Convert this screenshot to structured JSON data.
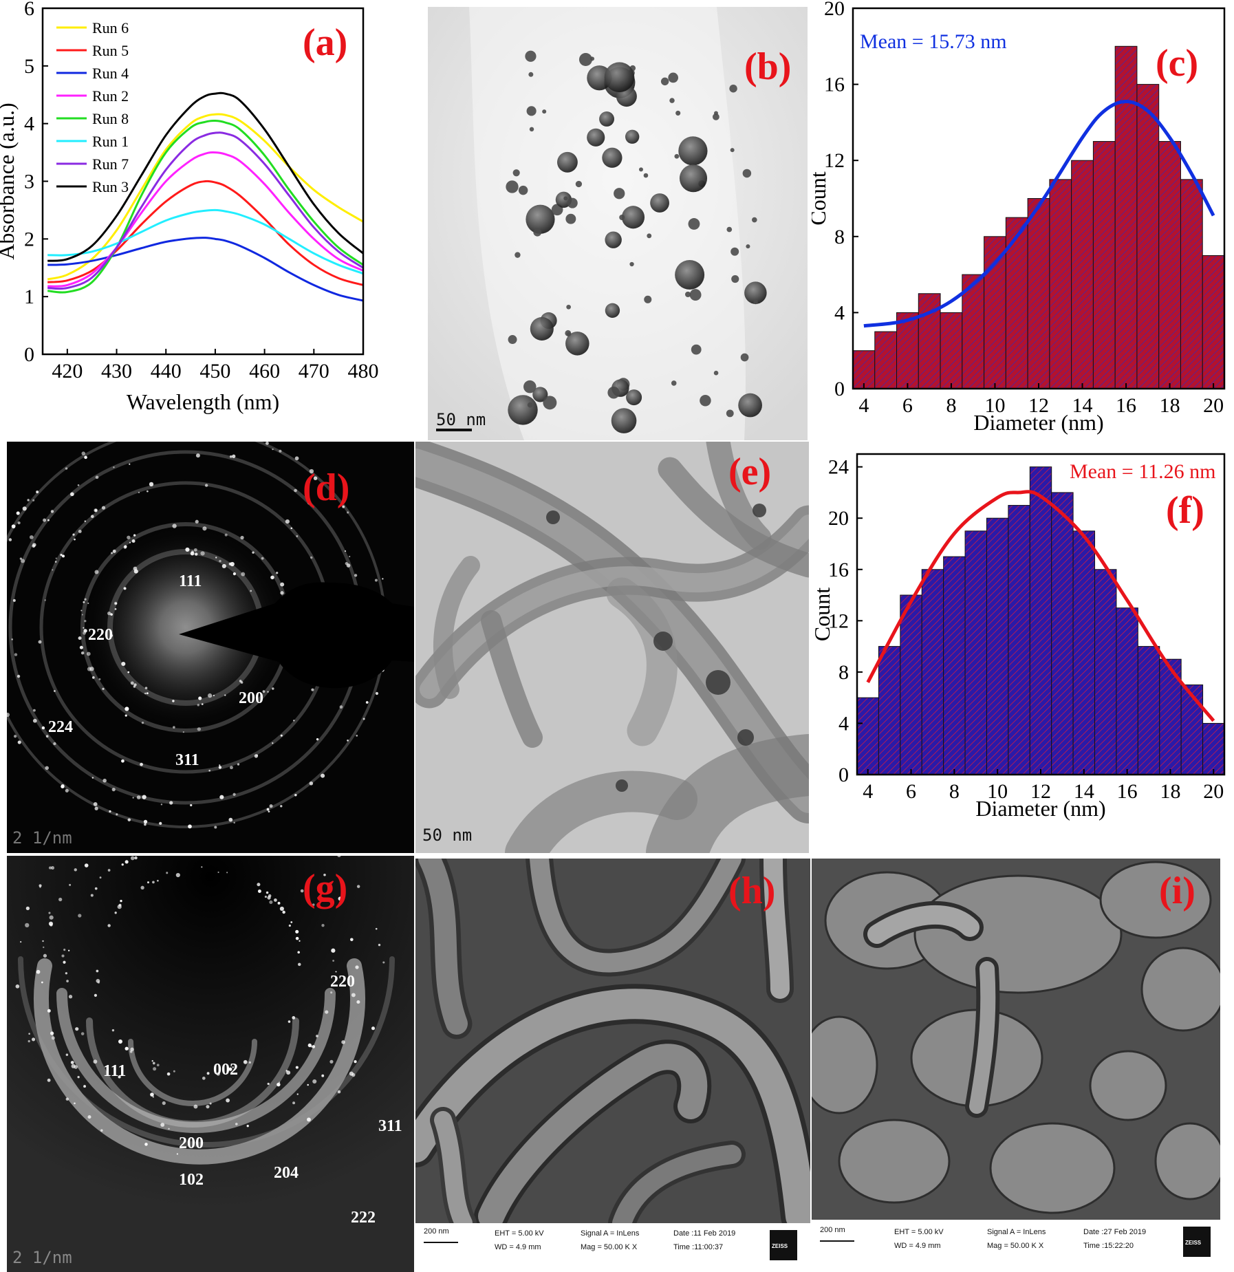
{
  "panels": {
    "a": {
      "letter": "(a)"
    },
    "b": {
      "letter": "(b)",
      "scalebar": "50 nm"
    },
    "c": {
      "letter": "(c)",
      "mean_label": "Mean = 15.73 nm"
    },
    "d": {
      "letter": "(d)",
      "hkl": [
        "111",
        "220",
        "200",
        "224",
        "311"
      ],
      "scalebar": "2 1/nm"
    },
    "e": {
      "letter": "(e)",
      "scalebar": "50 nm"
    },
    "f": {
      "letter": "(f)",
      "mean_label": "Mean = 11.26 nm"
    },
    "g": {
      "letter": "(g)",
      "hkl": [
        "220",
        "111",
        "002",
        "311",
        "200",
        "204",
        "102",
        "222"
      ],
      "scalebar": "2 1/nm"
    },
    "h": {
      "letter": "(h)",
      "info": {
        "scale": "200 nm",
        "eht": "EHT = 5.00 kV",
        "wd": "WD = 4.9 mm",
        "signal": "Signal A = InLens",
        "mag": "Mag = 50.00 K X",
        "date": "Date :11 Feb 2019",
        "time": "Time :11:00:37",
        "brand": "ZEISS"
      }
    },
    "i": {
      "letter": "(i)",
      "info": {
        "scale": "200 nm",
        "eht": "EHT = 5.00 kV",
        "wd": "WD = 4.9 mm",
        "signal": "Signal A = InLens",
        "mag": "Mag = 50.00 K X",
        "date": "Date :27 Feb 2019",
        "time": "Time :15:22:20",
        "brand": "ZEISS"
      }
    }
  },
  "colors": {
    "letter": "#e8141b",
    "hist_c_fill": "#b3122f",
    "hist_c_curve": "#1030e0",
    "hist_f_fill": "#2a1aa8",
    "hist_f_curve": "#e8141b"
  },
  "chart_data": [
    {
      "panel": "a",
      "type": "line",
      "xlabel": "Wavelength (nm)",
      "ylabel": "Absorbance (a.u.)",
      "xlim": [
        415,
        480
      ],
      "ylim": [
        0,
        6
      ],
      "xticks": [
        420,
        430,
        440,
        450,
        460,
        470,
        480
      ],
      "yticks": [
        0,
        1,
        2,
        3,
        4,
        5,
        6
      ],
      "legend": "top-left",
      "x": [
        416,
        420,
        425,
        430,
        435,
        440,
        445,
        448,
        450,
        452,
        455,
        460,
        465,
        470,
        475,
        480
      ],
      "series": [
        {
          "name": "Run 6",
          "color": "#ffee00",
          "values": [
            1.3,
            1.38,
            1.65,
            2.15,
            2.85,
            3.55,
            4.0,
            4.13,
            4.16,
            4.15,
            4.05,
            3.7,
            3.25,
            2.85,
            2.55,
            2.3
          ]
        },
        {
          "name": "Run 5",
          "color": "#ff1a1a",
          "values": [
            1.25,
            1.28,
            1.45,
            1.8,
            2.25,
            2.65,
            2.93,
            3.0,
            2.98,
            2.92,
            2.75,
            2.35,
            1.9,
            1.55,
            1.32,
            1.2
          ]
        },
        {
          "name": "Run 4",
          "color": "#1028e0",
          "values": [
            1.55,
            1.56,
            1.62,
            1.72,
            1.84,
            1.95,
            2.01,
            2.02,
            2.0,
            1.97,
            1.88,
            1.67,
            1.42,
            1.2,
            1.03,
            0.93
          ]
        },
        {
          "name": "Run 2",
          "color": "#ff22ff",
          "values": [
            1.18,
            1.2,
            1.4,
            1.85,
            2.45,
            3.0,
            3.36,
            3.48,
            3.5,
            3.47,
            3.35,
            2.95,
            2.45,
            2.0,
            1.65,
            1.45
          ]
        },
        {
          "name": "Run 8",
          "color": "#22dd22",
          "values": [
            1.1,
            1.08,
            1.25,
            1.85,
            2.75,
            3.5,
            3.93,
            4.03,
            4.05,
            4.02,
            3.9,
            3.45,
            2.85,
            2.3,
            1.85,
            1.55
          ]
        },
        {
          "name": "Run 1",
          "color": "#22eeff",
          "values": [
            1.72,
            1.72,
            1.78,
            1.92,
            2.12,
            2.32,
            2.45,
            2.49,
            2.5,
            2.48,
            2.42,
            2.25,
            2.0,
            1.75,
            1.55,
            1.4
          ]
        },
        {
          "name": "Run 7",
          "color": "#8a2be2",
          "values": [
            1.15,
            1.15,
            1.33,
            1.85,
            2.55,
            3.2,
            3.66,
            3.8,
            3.84,
            3.83,
            3.72,
            3.3,
            2.75,
            2.2,
            1.78,
            1.5
          ]
        },
        {
          "name": "Run 3",
          "color": "#000000",
          "values": [
            1.62,
            1.65,
            1.88,
            2.4,
            3.1,
            3.8,
            4.3,
            4.48,
            4.52,
            4.52,
            4.4,
            3.9,
            3.25,
            2.6,
            2.1,
            1.75
          ]
        }
      ]
    },
    {
      "panel": "c",
      "type": "bar",
      "xlabel": "Diameter (nm)",
      "ylabel": "Count",
      "xlim": [
        3.5,
        20.5
      ],
      "ylim": [
        0,
        20
      ],
      "xticks": [
        4,
        6,
        8,
        10,
        12,
        14,
        16,
        18,
        20
      ],
      "yticks": [
        0,
        4,
        8,
        12,
        16,
        20
      ],
      "bin_starts": [
        3.5,
        4.5,
        5.5,
        6.5,
        7.5,
        8.5,
        9.5,
        10.5,
        11.5,
        12.5,
        13.5,
        14.5,
        15.5,
        16.5,
        17.5,
        18.5,
        19.5
      ],
      "bin_width": 1,
      "values": [
        2,
        3,
        4,
        5,
        4,
        6,
        8,
        9,
        10,
        11,
        12,
        13,
        18,
        16,
        13,
        11,
        7
      ],
      "fit_curve": {
        "x": [
          4,
          6,
          8,
          10,
          12,
          14,
          15,
          16,
          17,
          18,
          19,
          20
        ],
        "y": [
          3.3,
          3.6,
          4.6,
          6.6,
          9.6,
          13.2,
          14.6,
          15.1,
          14.6,
          13.2,
          11.3,
          9.1
        ]
      }
    },
    {
      "panel": "f",
      "type": "bar",
      "xlabel": "Diameter (nm)",
      "ylabel": "Count",
      "xlim": [
        3.5,
        20.5
      ],
      "ylim": [
        0,
        25
      ],
      "xticks": [
        4,
        6,
        8,
        10,
        12,
        14,
        16,
        18,
        20
      ],
      "yticks": [
        0,
        4,
        8,
        12,
        16,
        20,
        24
      ],
      "bin_starts": [
        3.5,
        4.5,
        5.5,
        6.5,
        7.5,
        8.5,
        9.5,
        10.5,
        11.5,
        12.5,
        13.5,
        14.5,
        15.5,
        16.5,
        17.5,
        18.5,
        19.5
      ],
      "bin_width": 1,
      "values": [
        6,
        10,
        14,
        16,
        17,
        19,
        20,
        21,
        24,
        22,
        19,
        16,
        13,
        10,
        9,
        7,
        4
      ],
      "fit_curve": {
        "x": [
          4,
          6,
          8,
          10,
          11,
          12,
          14,
          16,
          18,
          20
        ],
        "y": [
          7.2,
          13.5,
          18.8,
          21.6,
          22.0,
          21.7,
          18.6,
          13.6,
          8.3,
          4.2
        ]
      }
    }
  ]
}
